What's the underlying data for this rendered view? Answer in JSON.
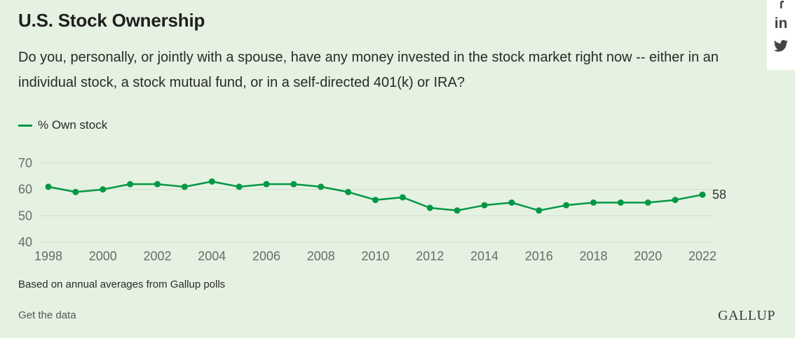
{
  "header": {
    "title": "U.S. Stock Ownership",
    "question": "Do you, personally, or jointly with a spouse, have any money invested in the stock market right now -- either in an individual stock, a stock mutual fund, or in a self-directed 401(k) or IRA?"
  },
  "footer": {
    "note": "Based on annual averages from Gallup polls",
    "get_data_label": "Get the data",
    "brand": "GALLUP"
  },
  "social": {
    "icons": [
      "facebook-icon",
      "linkedin-icon",
      "twitter-icon"
    ],
    "linkedin_text": "in"
  },
  "colors": {
    "series": "#009845",
    "background": "#e5f1e1",
    "grid": "#d3dece"
  },
  "chart_data": {
    "type": "line",
    "x": [
      1998,
      1999,
      2000,
      2001,
      2002,
      2003,
      2004,
      2005,
      2006,
      2007,
      2008,
      2009,
      2010,
      2011,
      2012,
      2013,
      2014,
      2015,
      2016,
      2017,
      2018,
      2019,
      2020,
      2021,
      2022
    ],
    "series": [
      {
        "name": "% Own stock",
        "values": [
          61,
          59,
          60,
          62,
          62,
          61,
          63,
          61,
          62,
          62,
          61,
          59,
          56,
          57,
          53,
          52,
          54,
          55,
          52,
          54,
          55,
          55,
          55,
          56,
          58
        ]
      }
    ],
    "x_ticks": [
      "1998",
      "2000",
      "2002",
      "2004",
      "2006",
      "2008",
      "2010",
      "2012",
      "2014",
      "2016",
      "2018",
      "2020",
      "2022"
    ],
    "y_ticks": [
      "40",
      "50",
      "60",
      "70"
    ],
    "end_label": "58",
    "xlim": [
      1998,
      2022
    ],
    "ylim": [
      40,
      70
    ],
    "grid": true,
    "legend": "top-left"
  }
}
